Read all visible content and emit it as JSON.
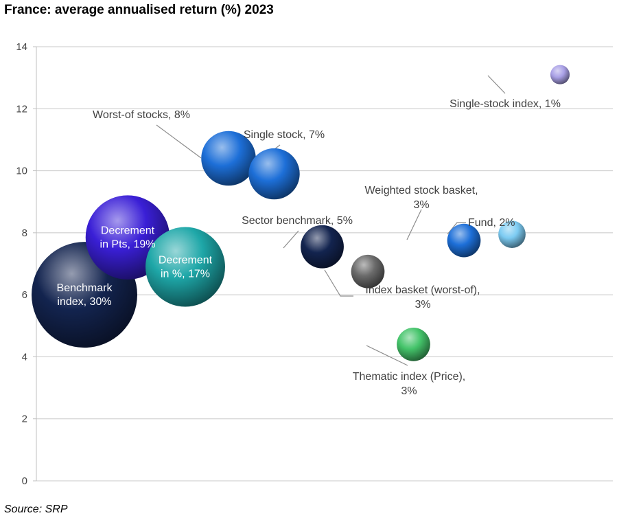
{
  "title": "France: average annualised return (%) 2023",
  "source": "Source: SRP",
  "chart_data": {
    "type": "bubble",
    "title": "France: average annualised return (%) 2023",
    "ylim": [
      0,
      14
    ],
    "yticks": [
      "0",
      "2",
      "4",
      "6",
      "8",
      "10",
      "12",
      "14"
    ],
    "grid": true,
    "points": [
      {
        "name": "Benchmark index",
        "share": "30%",
        "lines": [
          "Benchmark",
          "index, 30%"
        ],
        "x": 1.0,
        "y": 6.0,
        "size": 30,
        "color": "#13244f",
        "label_inside": true
      },
      {
        "name": "Decrement in Pts",
        "share": "19%",
        "lines": [
          "Decrement",
          "in Pts, 19%"
        ],
        "x": 1.9,
        "y": 7.85,
        "size": 19,
        "color": "#3a1fd6",
        "label_inside": true
      },
      {
        "name": "Decrement in %",
        "share": "17%",
        "lines": [
          "Decrement",
          "in %, 17%"
        ],
        "x": 3.1,
        "y": 6.9,
        "size": 17,
        "color": "#1ea7a8",
        "label_inside": true
      },
      {
        "name": "Worst-of stocks",
        "share": "8%",
        "lines": [
          "Worst-of stocks, 8%"
        ],
        "x": 4.0,
        "y": 10.4,
        "size": 8,
        "color": "#1d6fd8",
        "label_inside": false
      },
      {
        "name": "Single stock",
        "share": "7%",
        "lines": [
          "Single stock, 7%"
        ],
        "x": 4.95,
        "y": 9.9,
        "size": 7,
        "color": "#1d6fd8",
        "label_inside": false
      },
      {
        "name": "Sector benchmark",
        "share": "5%",
        "lines": [
          "Sector benchmark, 5%"
        ],
        "x": 5.95,
        "y": 7.55,
        "size": 5,
        "color": "#13244f",
        "label_inside": false
      },
      {
        "name": "Index basket (worst-of)",
        "share": "3%",
        "lines": [
          "Index basket (worst-of),",
          "3%"
        ],
        "x": 6.9,
        "y": 6.75,
        "size": 3,
        "color": "#6a6a6a",
        "label_inside": false
      },
      {
        "name": "Thematic index (Price)",
        "share": "3%",
        "lines": [
          "Thematic index (Price),",
          "3%"
        ],
        "x": 7.85,
        "y": 4.4,
        "size": 3,
        "color": "#44c46a",
        "label_inside": false
      },
      {
        "name": "Weighted stock basket",
        "share": "3%",
        "lines": [
          "Weighted stock basket,",
          "3%"
        ],
        "x": 8.9,
        "y": 7.75,
        "size": 3,
        "color": "#1d6fd8",
        "label_inside": false
      },
      {
        "name": "Fund",
        "share": "2%",
        "lines": [
          "Fund, 2%"
        ],
        "x": 9.9,
        "y": 7.95,
        "size": 2,
        "color": "#7ccbf2",
        "label_inside": false
      },
      {
        "name": "Single-stock index",
        "share": "1%",
        "lines": [
          "Single-stock index, 1%"
        ],
        "x": 10.9,
        "y": 13.1,
        "size": 1,
        "color": "#a9a0e6",
        "label_inside": false
      }
    ]
  }
}
